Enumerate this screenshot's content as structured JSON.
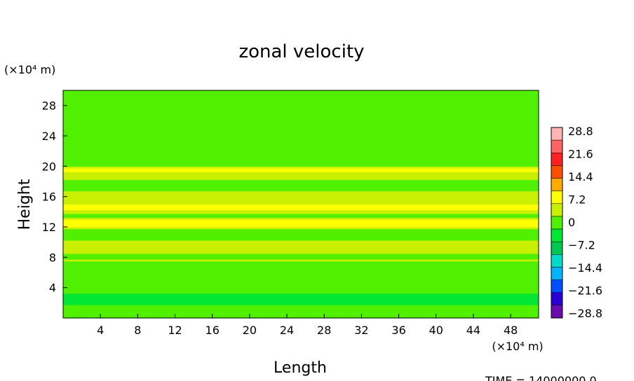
{
  "chart_data": {
    "type": "heatmap",
    "title": "zonal velocity",
    "xlabel": "Length",
    "ylabel": "Height",
    "x_unit_label": "(×10⁴ m)",
    "y_unit_label": "(×10⁴ m)",
    "x_range": [
      0,
      51
    ],
    "y_range": [
      0,
      30
    ],
    "x_ticks": [
      4,
      8,
      12,
      16,
      20,
      24,
      28,
      32,
      36,
      40,
      44,
      48
    ],
    "y_ticks": [
      4,
      8,
      12,
      16,
      20,
      24,
      28
    ],
    "colorbar": {
      "min": -28.8,
      "max": 28.8,
      "labels": [
        "28.8",
        "21.6",
        "14.4",
        "7.2",
        "0",
        "−7.2",
        "−14.4",
        "−21.6",
        "−28.8"
      ],
      "colors": [
        "#6a0dad",
        "#2a00d4",
        "#0050ff",
        "#00b4ff",
        "#00dcc8",
        "#00c850",
        "#00e632",
        "#50f000",
        "#c8f000",
        "#ffff00",
        "#ffaa00",
        "#ff5000",
        "#ff2020",
        "#ff6464",
        "#ffb4b4"
      ]
    },
    "bands": [
      {
        "height": 19.6,
        "value": 9.0,
        "width": 0.35
      },
      {
        "height": 18.8,
        "value": 4.0,
        "width": 0.5
      },
      {
        "height": 16.0,
        "value": 5.0,
        "width": 0.6
      },
      {
        "height": 14.6,
        "value": 7.5,
        "width": 0.6
      },
      {
        "height": 12.5,
        "value": 8.5,
        "width": 0.6
      },
      {
        "height": 9.4,
        "value": 5.5,
        "width": 0.7
      },
      {
        "height": 7.6,
        "value": 2.0,
        "width": 0.9
      },
      {
        "height": 2.5,
        "value": -3.0,
        "width": 1.2
      }
    ],
    "background_value": 0.5
  },
  "footer": {
    "time_label": "TIME = 14000000.0"
  }
}
